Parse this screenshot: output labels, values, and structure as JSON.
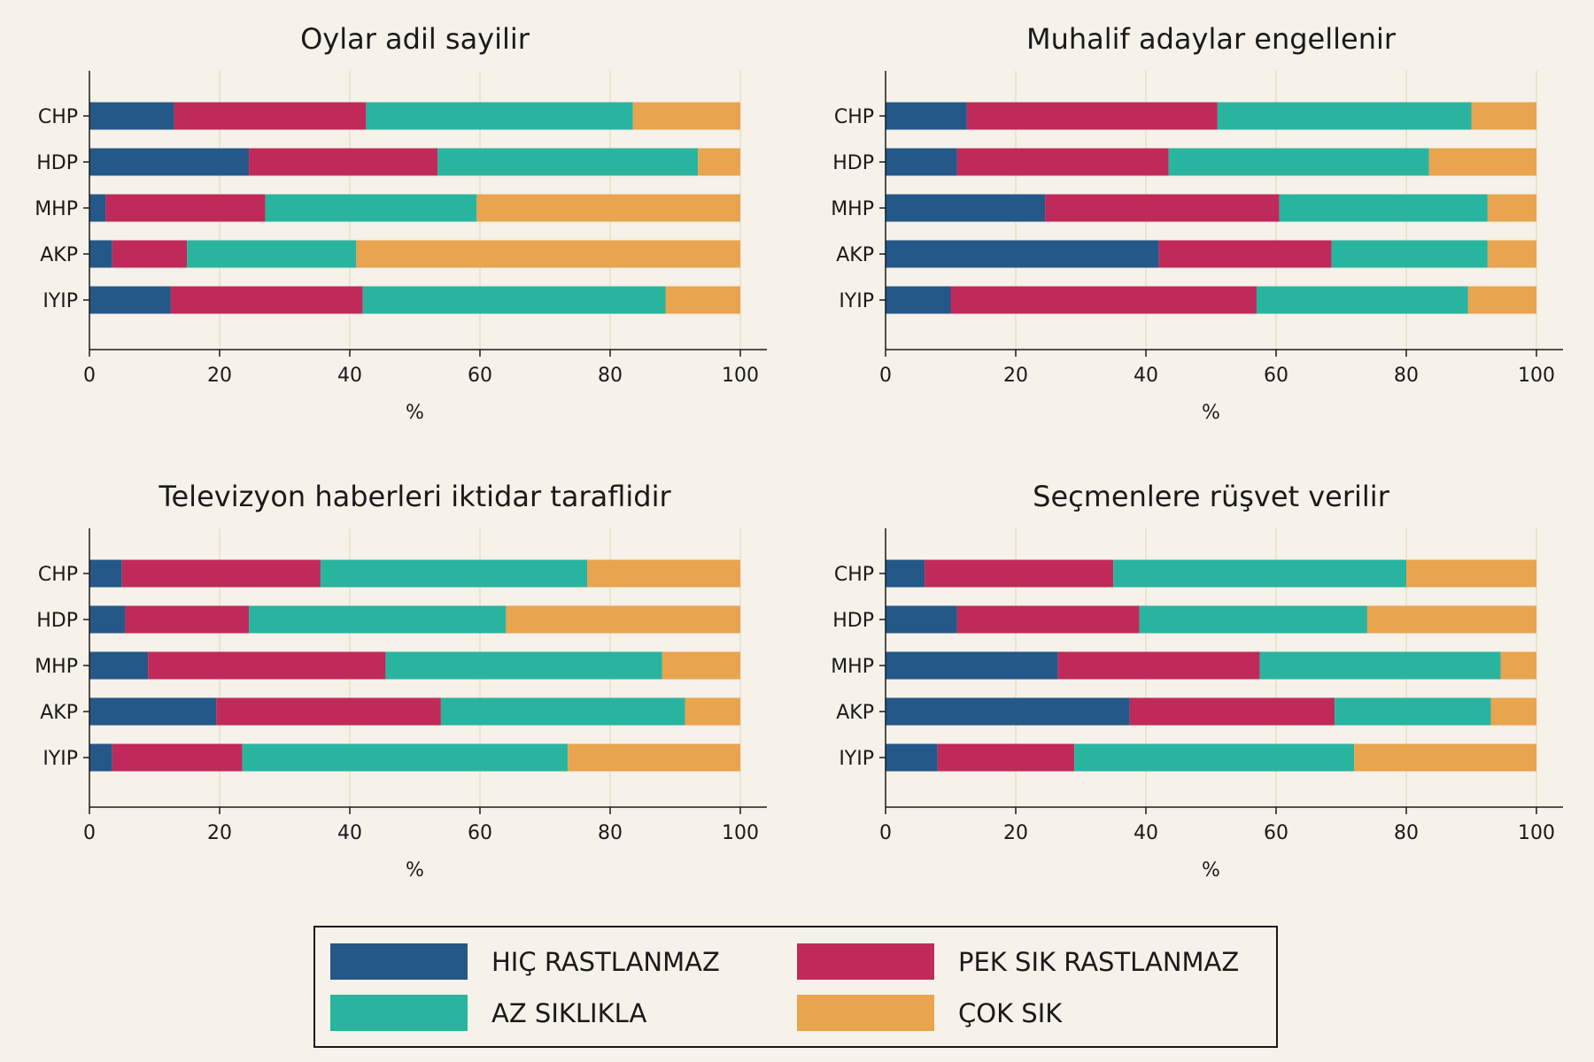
{
  "chart_data": [
    {
      "type": "bar",
      "orientation": "horizontal",
      "stacked": true,
      "title": "Oylar adil sayilir",
      "xlabel": "%",
      "ylabel": "",
      "xlim": [
        0,
        100
      ],
      "xticks": [
        "0",
        "20",
        "40",
        "60",
        "80",
        "100"
      ],
      "categories": [
        "CHP",
        "HDP",
        "MHP",
        "AKP",
        "IYIP"
      ],
      "series": [
        {
          "name": "HIÇ RASTLANMAZ",
          "values": [
            13,
            24.5,
            2.5,
            3.5,
            12.5
          ]
        },
        {
          "name": "PEK SIK RASTLANMAZ",
          "values": [
            29.5,
            29,
            24.5,
            11.5,
            29.5
          ]
        },
        {
          "name": "AZ SIKLIKLA",
          "values": [
            41,
            40,
            32.5,
            26,
            46.5
          ]
        },
        {
          "name": "ÇOK SIK",
          "values": [
            16.5,
            6.5,
            40.5,
            59,
            11.5
          ]
        }
      ],
      "grid": "vertical"
    },
    {
      "type": "bar",
      "orientation": "horizontal",
      "stacked": true,
      "title": "Muhalif adaylar engellenir",
      "xlabel": "%",
      "ylabel": "",
      "xlim": [
        0,
        100
      ],
      "xticks": [
        "0",
        "20",
        "40",
        "60",
        "80",
        "100"
      ],
      "categories": [
        "CHP",
        "HDP",
        "MHP",
        "AKP",
        "IYIP"
      ],
      "series": [
        {
          "name": "HIÇ RASTLANMAZ",
          "values": [
            12.5,
            11,
            24.5,
            42,
            10
          ]
        },
        {
          "name": "PEK SIK RASTLANMAZ",
          "values": [
            38.5,
            32.5,
            36,
            26.5,
            47
          ]
        },
        {
          "name": "AZ SIKLIKLA",
          "values": [
            39,
            40,
            32,
            24,
            32.5
          ]
        },
        {
          "name": "ÇOK SIK",
          "values": [
            10,
            16.5,
            7.5,
            7.5,
            10.5
          ]
        }
      ],
      "grid": "vertical"
    },
    {
      "type": "bar",
      "orientation": "horizontal",
      "stacked": true,
      "title": "Televizyon haberleri iktidar taraflidir",
      "xlabel": "%",
      "ylabel": "",
      "xlim": [
        0,
        100
      ],
      "xticks": [
        "0",
        "20",
        "40",
        "60",
        "80",
        "100"
      ],
      "categories": [
        "CHP",
        "HDP",
        "MHP",
        "AKP",
        "IYIP"
      ],
      "series": [
        {
          "name": "HIÇ RASTLANMAZ",
          "values": [
            5,
            5.5,
            9,
            19.5,
            3.5
          ]
        },
        {
          "name": "PEK SIK RASTLANMAZ",
          "values": [
            30.5,
            19,
            36.5,
            34.5,
            20
          ]
        },
        {
          "name": "AZ SIKLIKLA",
          "values": [
            41,
            39.5,
            42.5,
            37.5,
            50
          ]
        },
        {
          "name": "ÇOK SIK",
          "values": [
            23.5,
            36,
            12,
            8.5,
            26.5
          ]
        }
      ],
      "grid": "vertical"
    },
    {
      "type": "bar",
      "orientation": "horizontal",
      "stacked": true,
      "title": "Seçmenlere rüşvet verilir",
      "xlabel": "%",
      "ylabel": "",
      "xlim": [
        0,
        100
      ],
      "xticks": [
        "0",
        "20",
        "40",
        "60",
        "80",
        "100"
      ],
      "categories": [
        "CHP",
        "HDP",
        "MHP",
        "AKP",
        "IYIP"
      ],
      "series": [
        {
          "name": "HIÇ RASTLANMAZ",
          "values": [
            6,
            11,
            26.5,
            37.5,
            8
          ]
        },
        {
          "name": "PEK SIK RASTLANMAZ",
          "values": [
            29,
            28,
            31,
            31.5,
            21
          ]
        },
        {
          "name": "AZ SIKLIKLA",
          "values": [
            45,
            35,
            37,
            24,
            43
          ]
        },
        {
          "name": "ÇOK SIK",
          "values": [
            20,
            26,
            5.5,
            7,
            28
          ]
        }
      ],
      "grid": "vertical"
    }
  ],
  "legend": {
    "placement": "bottom-center",
    "items": [
      {
        "label": "HIÇ RASTLANMAZ",
        "color": "#245888"
      },
      {
        "label": "PEK SIK RASTLANMAZ",
        "color": "#c02a5a"
      },
      {
        "label": "AZ SIKLIKLA",
        "color": "#29b4a0"
      },
      {
        "label": "ÇOK SIK",
        "color": "#e9a44f"
      }
    ]
  },
  "colors": {
    "background": "#f6f1e9",
    "grid": "#ede4cf",
    "axis": "#1a1a1a"
  }
}
